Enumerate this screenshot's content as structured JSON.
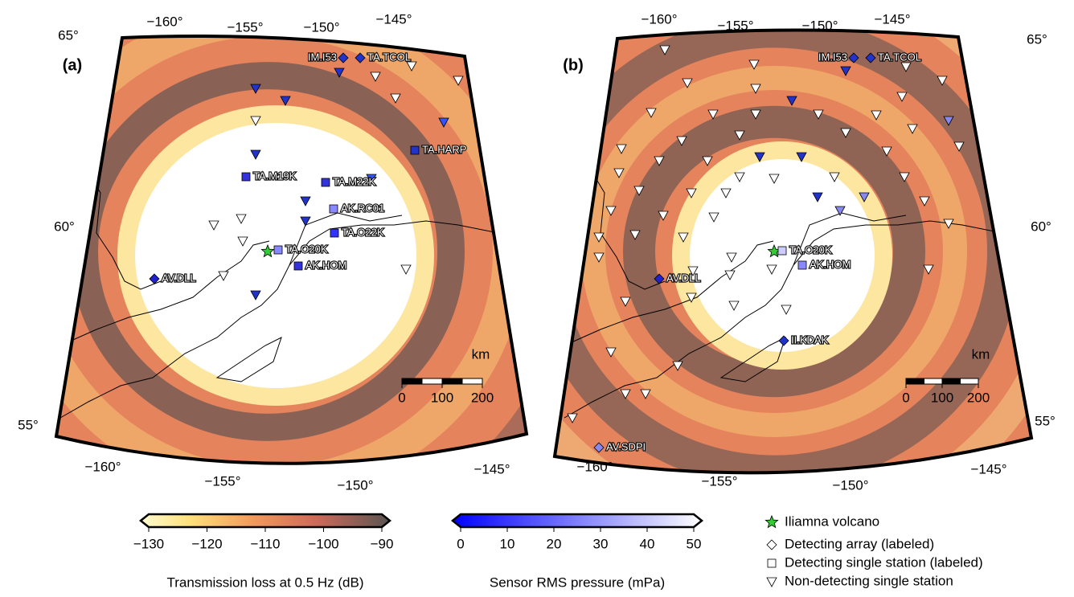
{
  "panels": [
    {
      "label": "(a)",
      "lon_top": [
        "−160°",
        "−155°",
        "−150°",
        "−145°"
      ],
      "lat_labels": [
        "65°",
        "60°",
        "55°"
      ],
      "lon_bottom": [
        "−160°",
        "−155°",
        "−150°",
        "−145°"
      ],
      "stations": [
        "IM.I53",
        "TA.TCOL",
        "TA.HARP",
        "TA.M19K",
        "TA.M22K",
        "AK.RC01",
        "TA.O22K",
        "TA.O20K",
        "AK.HOM",
        "AV.DLL"
      ],
      "scale": {
        "unit": "km",
        "ticks": [
          0,
          100,
          200
        ]
      }
    },
    {
      "label": "(b)",
      "lon_top": [
        "−160°",
        "−155°",
        "−150°",
        "−145°"
      ],
      "lat_labels": [
        "65°",
        "60°",
        "55°"
      ],
      "lon_bottom": [
        "−160°",
        "−155°",
        "−150°",
        "−145°"
      ],
      "stations": [
        "IM.I53",
        "TA.TCOL",
        "TA.O20K",
        "AK.HOM",
        "AV.DLL",
        "II.KDAK",
        "AV.SDPI"
      ],
      "scale": {
        "unit": "km",
        "ticks": [
          0,
          100,
          200
        ]
      }
    }
  ],
  "colorbars": [
    {
      "title": "Transmission loss at 0.5 Hz (dB)",
      "range": [
        -130,
        -90
      ],
      "ticks": [
        {
          "value": -130,
          "label": "−130"
        },
        {
          "value": -120,
          "label": "−120"
        },
        {
          "value": -110,
          "label": "−110"
        },
        {
          "value": -100,
          "label": "−100"
        },
        {
          "value": -90,
          "label": "−90"
        }
      ]
    },
    {
      "title": "Sensor RMS pressure (mPa)",
      "range": [
        0,
        50
      ],
      "ticks": [
        0,
        10,
        20,
        30,
        40,
        50
      ]
    }
  ],
  "legend": [
    "Iliamna volcano",
    "Detecting array (labeled)",
    "Detecting single station (labeled)",
    "Non-detecting single station"
  ]
}
